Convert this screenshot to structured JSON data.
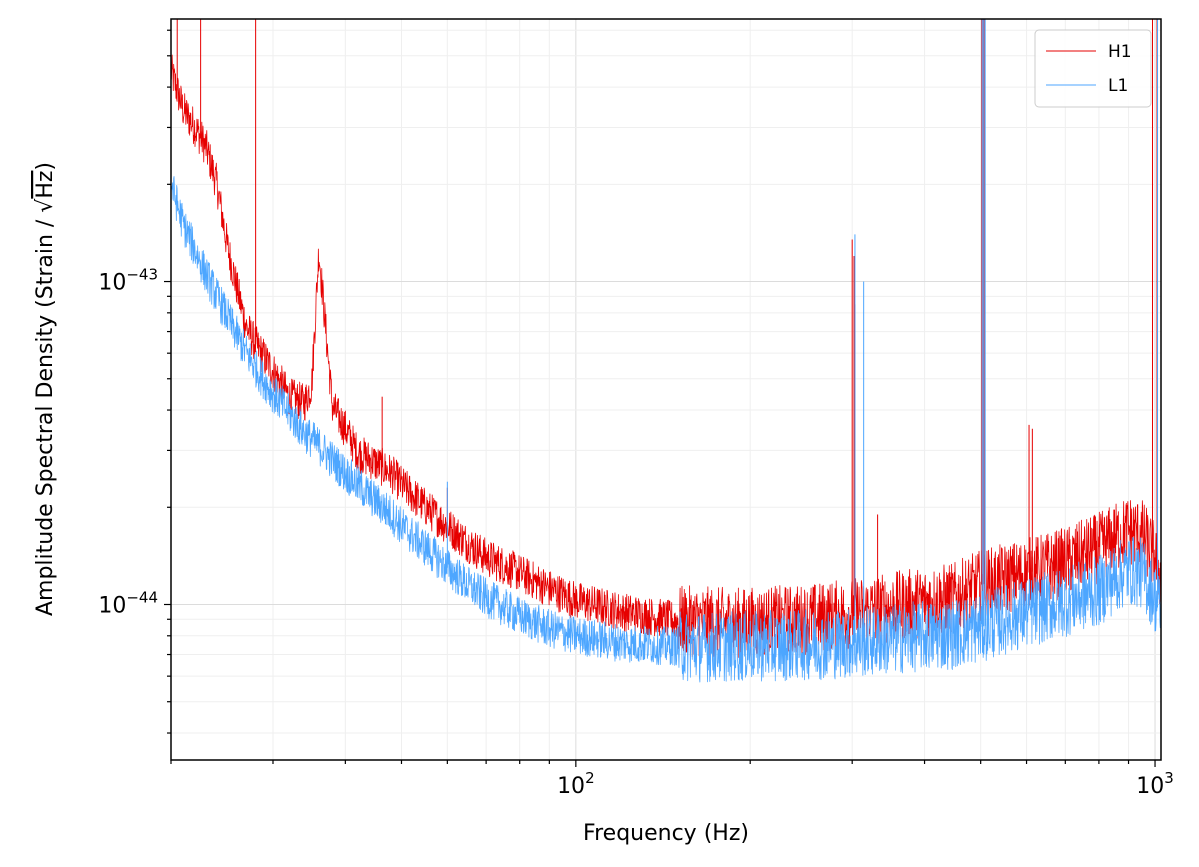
{
  "chart_data": {
    "type": "line",
    "xlabel": "Frequency (Hz)",
    "ylabel_prefix": "Amplitude Spectral Density (Strain / ",
    "ylabel_radicand": "Hz",
    "ylabel_suffix": ")",
    "xscale": "log",
    "yscale": "log",
    "xlim": [
      20,
      1024
    ],
    "ylim": [
      3.3e-45,
      6.5e-43
    ],
    "x_ticks": [
      {
        "value": 100,
        "base": "10",
        "exp": "2"
      },
      {
        "value": 1000,
        "base": "10",
        "exp": "3"
      }
    ],
    "y_ticks": [
      {
        "value": 1e-44,
        "base": "10",
        "exp": "−44"
      },
      {
        "value": 1e-43,
        "base": "10",
        "exp": "−43"
      }
    ],
    "grid": true,
    "legend_position": "top-right",
    "series": [
      {
        "name": "H1",
        "color": "#e60000",
        "x": [
          20,
          21,
          22,
          23,
          24,
          25,
          26,
          27,
          28,
          29,
          30,
          32,
          34,
          35,
          36,
          38,
          40,
          42,
          45,
          48,
          50,
          55,
          60,
          65,
          70,
          80,
          90,
          100,
          120,
          150,
          180,
          200,
          250,
          300,
          350,
          400,
          450,
          500,
          550,
          600,
          700,
          800,
          850,
          900,
          950,
          1000,
          1024
        ],
        "y": [
          4.5e-43,
          3.4e-43,
          3e-43,
          2.6e-43,
          2e-43,
          1.3e-43,
          9.5e-44,
          7.2e-44,
          6.4e-44,
          5.8e-44,
          5.3e-44,
          4.4e-44,
          4.2e-44,
          4.8e-44,
          1.25e-43,
          4.1e-44,
          3.5e-44,
          2.95e-44,
          2.75e-44,
          2.55e-44,
          2.35e-44,
          2e-44,
          1.75e-44,
          1.55e-44,
          1.4e-44,
          1.25e-44,
          1.12e-44,
          1.03e-44,
          9.5e-45,
          8.9e-45,
          8.8e-45,
          8.8e-45,
          9e-45,
          9.4e-45,
          9.8e-45,
          1.02e-44,
          1.05e-44,
          1.15e-44,
          1.2e-44,
          1.25e-44,
          1.35e-44,
          1.5e-44,
          1.6e-44,
          1.7e-44,
          1.65e-44,
          1.4e-44,
          1.2e-44
        ],
        "lines": [
          {
            "f": 20.5,
            "a": 6.5e-43
          },
          {
            "f": 22.5,
            "a": 6.5e-43
          },
          {
            "f": 28.0,
            "a": 6.5e-43
          },
          {
            "f": 46.3,
            "a": 4.4e-44
          },
          {
            "f": 60.0,
            "a": 2.3e-44
          },
          {
            "f": 300.0,
            "a": 1.35e-43
          },
          {
            "f": 302.2,
            "a": 1.2e-43
          },
          {
            "f": 303.3,
            "a": 8.5e-44
          },
          {
            "f": 331.9,
            "a": 1.9e-44
          },
          {
            "f": 502.0,
            "a": 6.5e-43
          },
          {
            "f": 505.0,
            "a": 6.5e-43
          },
          {
            "f": 508.0,
            "a": 6.5e-43
          },
          {
            "f": 606.0,
            "a": 3.6e-44
          },
          {
            "f": 614.0,
            "a": 3.5e-44
          },
          {
            "f": 990.0,
            "a": 6.5e-43
          },
          {
            "f": 1008.0,
            "a": 6.5e-43
          }
        ]
      },
      {
        "name": "L1",
        "color": "#4da6ff",
        "x": [
          20,
          21,
          22,
          23,
          24,
          25,
          26,
          27,
          28,
          29,
          30,
          32,
          34,
          35,
          36,
          38,
          40,
          42,
          45,
          48,
          50,
          55,
          60,
          65,
          70,
          80,
          90,
          100,
          120,
          150,
          180,
          200,
          250,
          300,
          350,
          400,
          450,
          500,
          550,
          600,
          700,
          800,
          850,
          900,
          950,
          1000,
          1024
        ],
        "y": [
          2e-43,
          1.5e-43,
          1.25e-43,
          1.05e-43,
          9e-44,
          7.8e-44,
          6.8e-44,
          6e-44,
          5.4e-44,
          4.9e-44,
          4.5e-44,
          3.9e-44,
          3.4e-44,
          3.25e-44,
          3.1e-44,
          2.8e-44,
          2.55e-44,
          2.35e-44,
          2.1e-44,
          1.9e-44,
          1.75e-44,
          1.5e-44,
          1.3e-44,
          1.15e-44,
          1.05e-44,
          9.2e-45,
          8.4e-45,
          8e-45,
          7.6e-45,
          7.4e-45,
          7.4e-45,
          7.4e-45,
          7.5e-45,
          7.6e-45,
          7.8e-45,
          8e-45,
          8.1e-45,
          8.5e-45,
          9e-45,
          9.4e-45,
          1.02e-44,
          1.1e-44,
          1.2e-44,
          1.28e-44,
          1.25e-44,
          1.05e-44,
          9.5e-45
        ],
        "lines": [
          {
            "f": 60.0,
            "a": 2.4e-44
          },
          {
            "f": 303.3,
            "a": 1.4e-43
          },
          {
            "f": 314.0,
            "a": 1e-43
          },
          {
            "f": 503.0,
            "a": 6.5e-43
          },
          {
            "f": 506.0,
            "a": 6.5e-43
          },
          {
            "f": 509.0,
            "a": 6.5e-43
          },
          {
            "f": 1010.0,
            "a": 6.5e-43
          }
        ]
      }
    ]
  }
}
